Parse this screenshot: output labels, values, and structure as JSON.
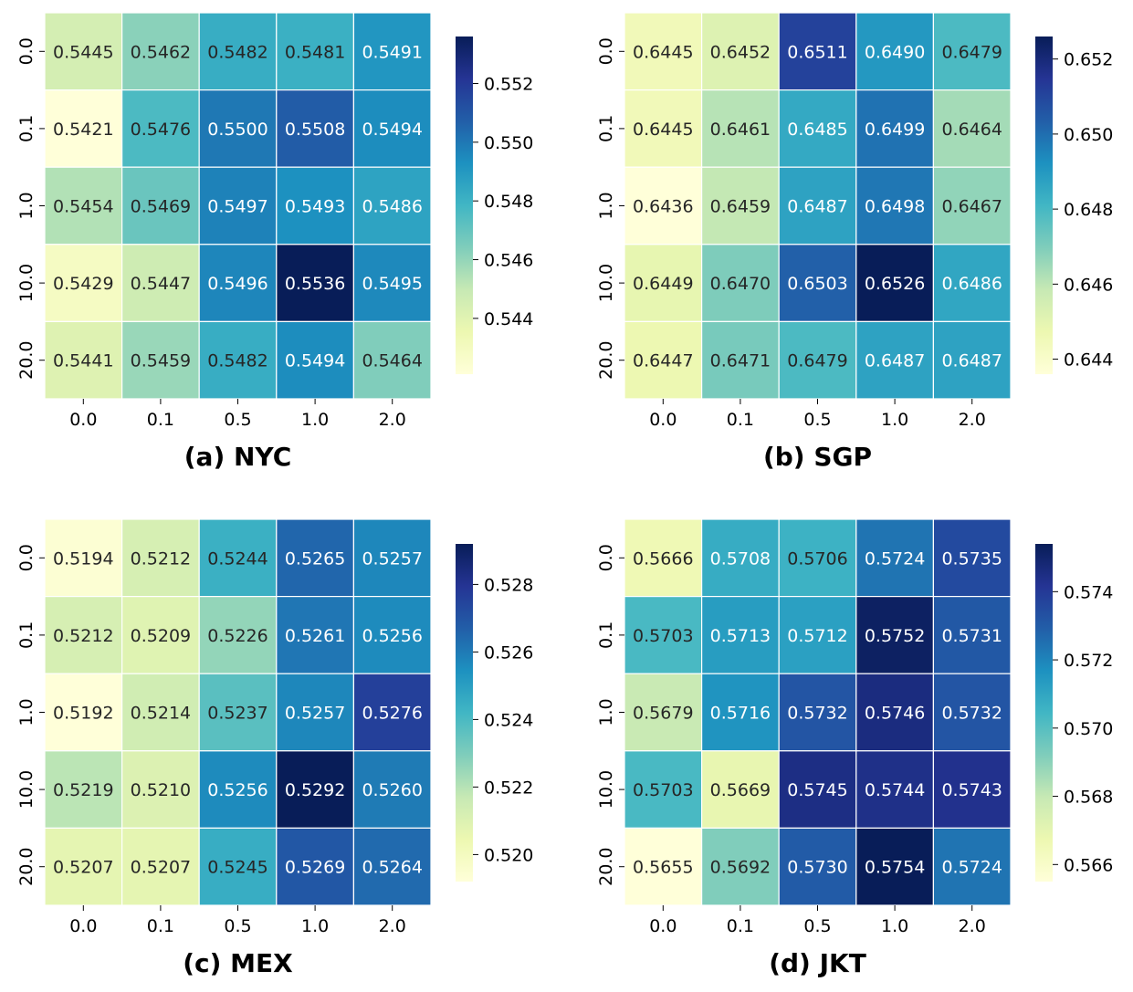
{
  "colormap": [
    "#ffffd9",
    "#edf8b1",
    "#c7e9b4",
    "#7fcdbb",
    "#41b6c4",
    "#1d91c0",
    "#225ea8",
    "#253494",
    "#081d58"
  ],
  "chart_data": [
    {
      "type": "heatmap",
      "title": "(a) NYC",
      "x_categories": [
        "0.0",
        "0.1",
        "0.5",
        "1.0",
        "2.0"
      ],
      "y_categories": [
        "0.0",
        "0.1",
        "1.0",
        "10.0",
        "20.0"
      ],
      "values": [
        [
          0.5445,
          0.5462,
          0.5482,
          0.5481,
          0.5491
        ],
        [
          0.5421,
          0.5476,
          0.55,
          0.5508,
          0.5494
        ],
        [
          0.5454,
          0.5469,
          0.5497,
          0.5493,
          0.5486
        ],
        [
          0.5429,
          0.5447,
          0.5496,
          0.5536,
          0.5495
        ],
        [
          0.5441,
          0.5459,
          0.5482,
          0.5494,
          0.5464
        ]
      ],
      "colorbar_ticks": [
        "0.544",
        "0.546",
        "0.548",
        "0.550",
        "0.552"
      ]
    },
    {
      "type": "heatmap",
      "title": "(b) SGP",
      "x_categories": [
        "0.0",
        "0.1",
        "0.5",
        "1.0",
        "2.0"
      ],
      "y_categories": [
        "0.0",
        "0.1",
        "1.0",
        "10.0",
        "20.0"
      ],
      "values": [
        [
          0.6445,
          0.6452,
          0.6511,
          0.649,
          0.6479
        ],
        [
          0.6445,
          0.6461,
          0.6485,
          0.6499,
          0.6464
        ],
        [
          0.6436,
          0.6459,
          0.6487,
          0.6498,
          0.6467
        ],
        [
          0.6449,
          0.647,
          0.6503,
          0.6526,
          0.6486
        ],
        [
          0.6447,
          0.6471,
          0.6479,
          0.6487,
          0.6487
        ]
      ],
      "colorbar_ticks": [
        "0.644",
        "0.646",
        "0.648",
        "0.650",
        "0.652"
      ]
    },
    {
      "type": "heatmap",
      "title": "(c) MEX",
      "x_categories": [
        "0.0",
        "0.1",
        "0.5",
        "1.0",
        "2.0"
      ],
      "y_categories": [
        "0.0",
        "0.1",
        "1.0",
        "10.0",
        "20.0"
      ],
      "values": [
        [
          0.5194,
          0.5212,
          0.5244,
          0.5265,
          0.5257
        ],
        [
          0.5212,
          0.5209,
          0.5226,
          0.5261,
          0.5256
        ],
        [
          0.5192,
          0.5214,
          0.5237,
          0.5257,
          0.5276
        ],
        [
          0.5219,
          0.521,
          0.5256,
          0.5292,
          0.526
        ],
        [
          0.5207,
          0.5207,
          0.5245,
          0.5269,
          0.5264
        ]
      ],
      "colorbar_ticks": [
        "0.520",
        "0.522",
        "0.524",
        "0.526",
        "0.528"
      ]
    },
    {
      "type": "heatmap",
      "title": "(d) JKT",
      "x_categories": [
        "0.0",
        "0.1",
        "0.5",
        "1.0",
        "2.0"
      ],
      "y_categories": [
        "0.0",
        "0.1",
        "1.0",
        "10.0",
        "20.0"
      ],
      "values": [
        [
          0.5666,
          0.5708,
          0.5706,
          0.5724,
          0.5735
        ],
        [
          0.5703,
          0.5713,
          0.5712,
          0.5752,
          0.5731
        ],
        [
          0.5679,
          0.5716,
          0.5732,
          0.5746,
          0.5732
        ],
        [
          0.5703,
          0.5669,
          0.5745,
          0.5744,
          0.5743
        ],
        [
          0.5655,
          0.5692,
          0.573,
          0.5754,
          0.5724
        ]
      ],
      "colorbar_ticks": [
        "0.566",
        "0.568",
        "0.570",
        "0.572",
        "0.574"
      ]
    }
  ]
}
